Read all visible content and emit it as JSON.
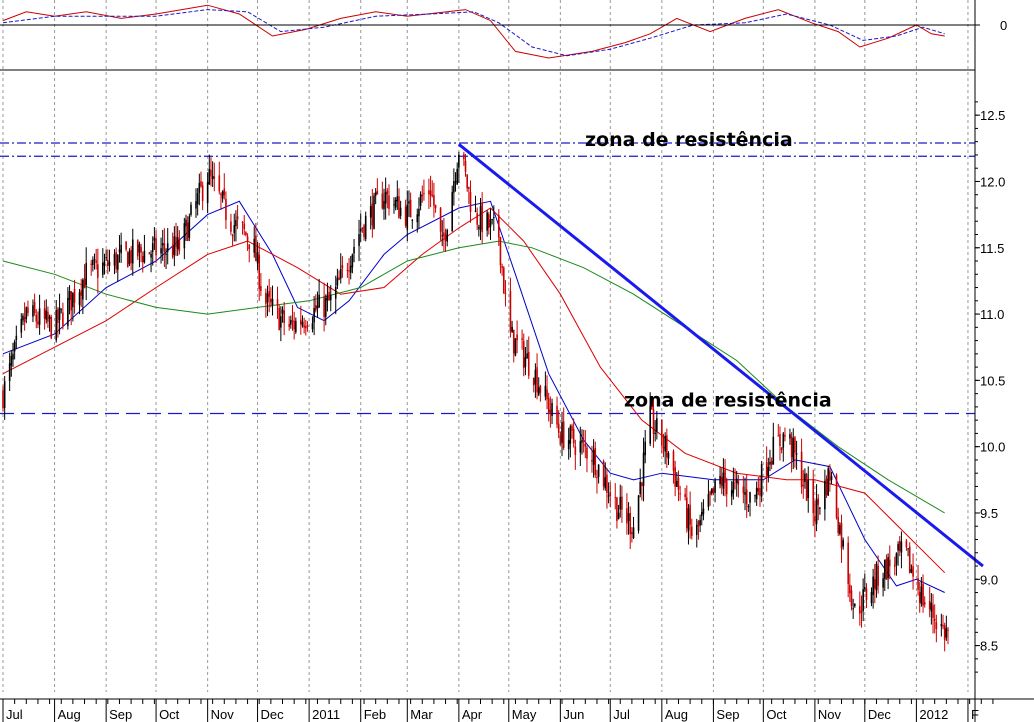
{
  "chart_data": {
    "type": "candlestick",
    "title": "",
    "xlabel": "",
    "ylabel": "",
    "x_range": [
      "2010-07-01",
      "2012-01-20"
    ],
    "ylim": [
      8.15,
      12.75
    ],
    "y_ticks": [
      "12.5",
      "12.0",
      "11.5",
      "11.0",
      "10.5",
      "10.0",
      "9.5",
      "9.0",
      "8.5"
    ],
    "x_ticks": [
      {
        "date": "2010-07-01",
        "label": "Jul"
      },
      {
        "date": "2010-08-01",
        "label": "Aug"
      },
      {
        "date": "2010-09-01",
        "label": "Sep"
      },
      {
        "date": "2010-10-01",
        "label": "Oct"
      },
      {
        "date": "2010-11-01",
        "label": "Nov"
      },
      {
        "date": "2010-12-01",
        "label": "Dec"
      },
      {
        "date": "2011-01-01",
        "label": "2011"
      },
      {
        "date": "2011-02-01",
        "label": "Feb"
      },
      {
        "date": "2011-03-01",
        "label": "Mar"
      },
      {
        "date": "2011-04-01",
        "label": "Apr"
      },
      {
        "date": "2011-05-01",
        "label": "May"
      },
      {
        "date": "2011-06-01",
        "label": "Jun"
      },
      {
        "date": "2011-07-01",
        "label": "Jul"
      },
      {
        "date": "2011-08-01",
        "label": "Aug"
      },
      {
        "date": "2011-09-01",
        "label": "Sep"
      },
      {
        "date": "2011-10-01",
        "label": "Oct"
      },
      {
        "date": "2011-11-01",
        "label": "Nov"
      },
      {
        "date": "2011-12-01",
        "label": "Dec"
      },
      {
        "date": "2012-01-01",
        "label": "2012"
      },
      {
        "date": "2012-02-01",
        "label": "F"
      }
    ],
    "price_path": [
      [
        "2010-07-01",
        10.4
      ],
      [
        "2010-07-15",
        11.0
      ],
      [
        "2010-08-01",
        10.9
      ],
      [
        "2010-08-20",
        11.3
      ],
      [
        "2010-09-15",
        11.45
      ],
      [
        "2010-10-15",
        11.5
      ],
      [
        "2010-11-01",
        12.05
      ],
      [
        "2010-11-15",
        11.7
      ],
      [
        "2010-11-28",
        11.55
      ],
      [
        "2010-12-05",
        11.1
      ],
      [
        "2010-12-20",
        10.9
      ],
      [
        "2011-01-01",
        11.0
      ],
      [
        "2011-01-15",
        11.1
      ],
      [
        "2011-02-01",
        11.65
      ],
      [
        "2011-02-15",
        11.9
      ],
      [
        "2011-03-01",
        11.75
      ],
      [
        "2011-03-15",
        11.95
      ],
      [
        "2011-03-22",
        11.5
      ],
      [
        "2011-04-01",
        12.25
      ],
      [
        "2011-04-10",
        11.75
      ],
      [
        "2011-04-25",
        11.6
      ],
      [
        "2011-05-01",
        10.85
      ],
      [
        "2011-05-15",
        10.6
      ],
      [
        "2011-06-01",
        10.1
      ],
      [
        "2011-06-20",
        9.95
      ],
      [
        "2011-07-05",
        9.55
      ],
      [
        "2011-07-15",
        9.4
      ],
      [
        "2011-07-25",
        10.2
      ],
      [
        "2011-08-05",
        9.95
      ],
      [
        "2011-08-20",
        9.3
      ],
      [
        "2011-09-05",
        9.75
      ],
      [
        "2011-09-25",
        9.6
      ],
      [
        "2011-10-05",
        9.95
      ],
      [
        "2011-10-15",
        10.1
      ],
      [
        "2011-11-01",
        9.5
      ],
      [
        "2011-11-10",
        9.8
      ],
      [
        "2011-11-25",
        8.75
      ],
      [
        "2011-12-10",
        9.05
      ],
      [
        "2011-12-25",
        9.2
      ],
      [
        "2012-01-05",
        8.85
      ],
      [
        "2012-01-18",
        8.6
      ]
    ],
    "moving_averages": [
      {
        "color": "#0000cc",
        "points": [
          [
            "2010-07-01",
            10.7
          ],
          [
            "2010-08-01",
            10.85
          ],
          [
            "2010-09-01",
            11.2
          ],
          [
            "2010-10-01",
            11.4
          ],
          [
            "2010-11-01",
            11.75
          ],
          [
            "2010-11-20",
            11.85
          ],
          [
            "2010-12-10",
            11.45
          ],
          [
            "2010-12-25",
            11.05
          ],
          [
            "2011-01-10",
            10.95
          ],
          [
            "2011-01-25",
            11.1
          ],
          [
            "2011-02-15",
            11.45
          ],
          [
            "2011-03-01",
            11.6
          ],
          [
            "2011-04-01",
            11.8
          ],
          [
            "2011-04-20",
            11.85
          ],
          [
            "2011-05-05",
            11.3
          ],
          [
            "2011-05-25",
            10.55
          ],
          [
            "2011-06-15",
            10.05
          ],
          [
            "2011-07-01",
            9.8
          ],
          [
            "2011-07-15",
            9.75
          ],
          [
            "2011-08-01",
            9.8
          ],
          [
            "2011-09-01",
            9.75
          ],
          [
            "2011-10-01",
            9.75
          ],
          [
            "2011-10-20",
            9.9
          ],
          [
            "2011-11-10",
            9.85
          ],
          [
            "2011-12-01",
            9.3
          ],
          [
            "2011-12-20",
            8.95
          ],
          [
            "2012-01-01",
            9.0
          ],
          [
            "2012-01-18",
            8.9
          ]
        ]
      },
      {
        "color": "#dd0000",
        "points": [
          [
            "2010-07-01",
            10.55
          ],
          [
            "2010-08-01",
            10.75
          ],
          [
            "2010-09-01",
            10.95
          ],
          [
            "2010-10-01",
            11.2
          ],
          [
            "2010-11-01",
            11.45
          ],
          [
            "2010-11-25",
            11.55
          ],
          [
            "2010-12-25",
            11.35
          ],
          [
            "2011-01-20",
            11.15
          ],
          [
            "2011-02-15",
            11.2
          ],
          [
            "2011-03-10",
            11.45
          ],
          [
            "2011-04-01",
            11.65
          ],
          [
            "2011-04-20",
            11.8
          ],
          [
            "2011-05-10",
            11.55
          ],
          [
            "2011-06-01",
            11.15
          ],
          [
            "2011-06-25",
            10.6
          ],
          [
            "2011-07-20",
            10.2
          ],
          [
            "2011-08-15",
            9.95
          ],
          [
            "2011-09-15",
            9.8
          ],
          [
            "2011-10-15",
            9.75
          ],
          [
            "2011-11-01",
            9.75
          ],
          [
            "2011-12-01",
            9.65
          ],
          [
            "2011-12-25",
            9.35
          ],
          [
            "2012-01-18",
            9.05
          ]
        ]
      },
      {
        "color": "#1a8a1a",
        "points": [
          [
            "2010-07-01",
            11.4
          ],
          [
            "2010-08-01",
            11.3
          ],
          [
            "2010-09-01",
            11.15
          ],
          [
            "2010-10-01",
            11.05
          ],
          [
            "2010-11-01",
            11.0
          ],
          [
            "2010-12-01",
            11.05
          ],
          [
            "2011-01-01",
            11.1
          ],
          [
            "2011-02-01",
            11.2
          ],
          [
            "2011-03-01",
            11.4
          ],
          [
            "2011-04-01",
            11.5
          ],
          [
            "2011-04-25",
            11.55
          ],
          [
            "2011-05-15",
            11.5
          ],
          [
            "2011-06-15",
            11.35
          ],
          [
            "2011-07-15",
            11.15
          ],
          [
            "2011-08-15",
            10.9
          ],
          [
            "2011-09-15",
            10.65
          ],
          [
            "2011-10-15",
            10.3
          ],
          [
            "2011-11-15",
            10.0
          ],
          [
            "2011-12-15",
            9.75
          ],
          [
            "2012-01-18",
            9.5
          ]
        ]
      }
    ],
    "resistance_lines": [
      {
        "label": "zona de resistência",
        "style": "dash-dot",
        "values": [
          12.29,
          12.19
        ]
      },
      {
        "label": "zona de resistência",
        "style": "dashed",
        "values": [
          10.25
        ]
      }
    ],
    "trendline": {
      "color": "#1a1aee",
      "from": [
        "2011-04-01",
        12.28
      ],
      "to": [
        "2012-02-10",
        9.1
      ]
    },
    "oscillator": {
      "zero_label": "0",
      "series": [
        {
          "color": "#cc0000",
          "style": "solid",
          "points": [
            [
              "2010-07-01",
              0.2
            ],
            [
              "2010-07-15",
              0.6
            ],
            [
              "2010-08-01",
              0.4
            ],
            [
              "2010-08-20",
              0.6
            ],
            [
              "2010-09-10",
              0.3
            ],
            [
              "2010-10-01",
              0.5
            ],
            [
              "2010-11-01",
              0.9
            ],
            [
              "2010-11-20",
              0.5
            ],
            [
              "2010-12-10",
              -0.5
            ],
            [
              "2010-12-30",
              -0.2
            ],
            [
              "2011-01-20",
              0.3
            ],
            [
              "2011-02-10",
              0.6
            ],
            [
              "2011-03-01",
              0.4
            ],
            [
              "2011-03-25",
              0.6
            ],
            [
              "2011-04-05",
              0.7
            ],
            [
              "2011-04-20",
              0.2
            ],
            [
              "2011-05-05",
              -1.2
            ],
            [
              "2011-05-25",
              -1.5
            ],
            [
              "2011-06-20",
              -1.2
            ],
            [
              "2011-07-10",
              -0.8
            ],
            [
              "2011-07-25",
              -0.4
            ],
            [
              "2011-08-10",
              0.3
            ],
            [
              "2011-08-30",
              -0.3
            ],
            [
              "2011-09-20",
              0.3
            ],
            [
              "2011-10-10",
              0.7
            ],
            [
              "2011-10-30",
              0.1
            ],
            [
              "2011-11-15",
              -0.3
            ],
            [
              "2011-11-28",
              -1.0
            ],
            [
              "2011-12-15",
              -0.6
            ],
            [
              "2012-01-01",
              0.0
            ],
            [
              "2012-01-10",
              -0.4
            ],
            [
              "2012-01-18",
              -0.5
            ]
          ]
        },
        {
          "color": "#1a1acc",
          "style": "dashed",
          "points": [
            [
              "2010-07-01",
              0.1
            ],
            [
              "2010-08-01",
              0.4
            ],
            [
              "2010-09-10",
              0.4
            ],
            [
              "2010-10-01",
              0.4
            ],
            [
              "2010-11-01",
              0.7
            ],
            [
              "2010-11-25",
              0.6
            ],
            [
              "2010-12-15",
              -0.3
            ],
            [
              "2011-01-10",
              -0.1
            ],
            [
              "2011-02-10",
              0.4
            ],
            [
              "2011-03-15",
              0.5
            ],
            [
              "2011-04-10",
              0.6
            ],
            [
              "2011-04-25",
              0.1
            ],
            [
              "2011-05-15",
              -1.0
            ],
            [
              "2011-06-05",
              -1.4
            ],
            [
              "2011-07-01",
              -1.1
            ],
            [
              "2011-07-25",
              -0.6
            ],
            [
              "2011-08-20",
              0.0
            ],
            [
              "2011-09-20",
              0.1
            ],
            [
              "2011-10-15",
              0.5
            ],
            [
              "2011-11-10",
              0.0
            ],
            [
              "2011-11-30",
              -0.7
            ],
            [
              "2011-12-20",
              -0.5
            ],
            [
              "2012-01-05",
              -0.1
            ],
            [
              "2012-01-18",
              -0.4
            ]
          ]
        }
      ]
    },
    "colors": {
      "up": "#000000",
      "down": "#cc0000",
      "grid": "#999999"
    }
  }
}
